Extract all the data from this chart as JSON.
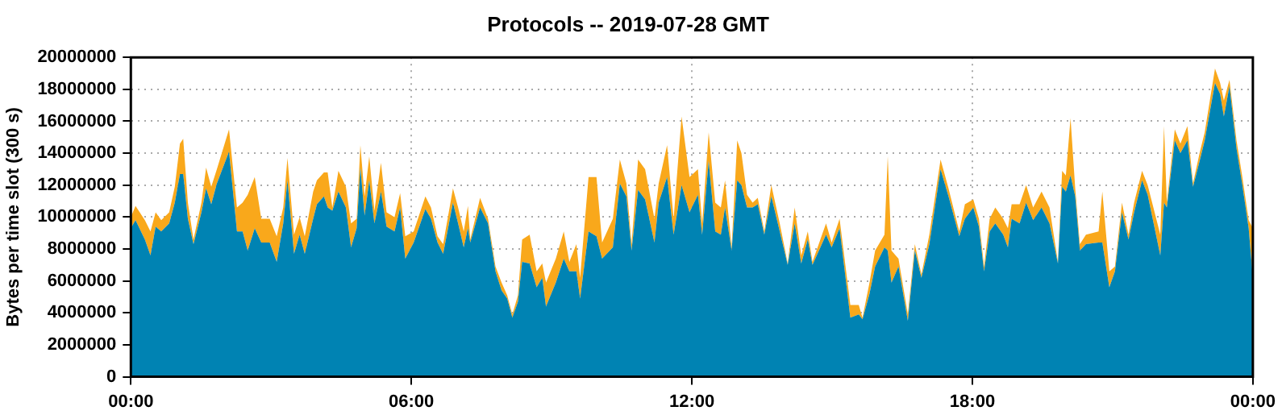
{
  "chart_data": {
    "type": "area",
    "title": "Protocols -- 2019-07-28 GMT",
    "ylabel": "Bytes per time slot (300 s)",
    "stacked": true,
    "grid": true,
    "xlim": [
      0,
      24
    ],
    "xticks": [
      {
        "value": 0,
        "label": "00:00"
      },
      {
        "value": 6,
        "label": "06:00"
      },
      {
        "value": 12,
        "label": "12:00"
      },
      {
        "value": 18,
        "label": "18:00"
      },
      {
        "value": 24,
        "label": "00:00"
      }
    ],
    "ylim": [
      0,
      20000000
    ],
    "yticks": [
      0,
      2000000,
      4000000,
      6000000,
      8000000,
      10000000,
      12000000,
      14000000,
      16000000,
      18000000,
      20000000
    ],
    "x": [
      0,
      0.1,
      0.3,
      0.42,
      0.53,
      0.65,
      0.82,
      0.94,
      1.05,
      1.12,
      1.22,
      1.34,
      1.51,
      1.61,
      1.72,
      1.84,
      2.1,
      2.27,
      2.39,
      2.5,
      2.65,
      2.79,
      2.97,
      3.12,
      3.26,
      3.35,
      3.49,
      3.61,
      3.72,
      3.9,
      3.98,
      4.13,
      4.21,
      4.31,
      4.44,
      4.6,
      4.71,
      4.83,
      4.91,
      5.0,
      5.1,
      5.21,
      5.35,
      5.47,
      5.64,
      5.76,
      5.87,
      6.05,
      6.3,
      6.42,
      6.56,
      6.68,
      6.89,
      7.0,
      7.12,
      7.21,
      7.26,
      7.47,
      7.64,
      7.8,
      7.93,
      8.05,
      8.16,
      8.28,
      8.37,
      8.53,
      8.68,
      8.8,
      8.88,
      9.09,
      9.26,
      9.38,
      9.53,
      9.61,
      9.79,
      9.96,
      10.08,
      10.31,
      10.46,
      10.6,
      10.71,
      10.85,
      11.0,
      11.2,
      11.29,
      11.47,
      11.61,
      11.78,
      11.95,
      12.13,
      12.22,
      12.36,
      12.5,
      12.62,
      12.71,
      12.85,
      12.97,
      13.06,
      13.18,
      13.3,
      13.41,
      13.55,
      13.7,
      13.88,
      14.05,
      14.2,
      14.34,
      14.48,
      14.58,
      14.87,
      14.99,
      15.16,
      15.39,
      15.57,
      15.65,
      15.8,
      15.92,
      16.12,
      16.19,
      16.27,
      16.42,
      16.62,
      16.77,
      16.91,
      17.08,
      17.32,
      17.49,
      17.72,
      17.84,
      18.02,
      18.14,
      18.25,
      18.37,
      18.49,
      18.66,
      18.76,
      18.84,
      19.01,
      19.15,
      19.3,
      19.48,
      19.65,
      19.83,
      19.92,
      20.0,
      20.1,
      20.2,
      20.3,
      20.43,
      20.7,
      20.78,
      20.93,
      21.05,
      21.2,
      21.34,
      21.46,
      21.63,
      21.75,
      22.02,
      22.1,
      22.16,
      22.33,
      22.45,
      22.6,
      22.72,
      22.86,
      22.97,
      23.19,
      23.3,
      23.38,
      23.5,
      23.65,
      23.77,
      23.91,
      24.0
    ],
    "series": [
      {
        "color": "#0083b3",
        "values": [
          9300000,
          9800000,
          8600000,
          7600000,
          9400000,
          9100000,
          9600000,
          10900000,
          12700000,
          12700000,
          9900000,
          8300000,
          10300000,
          11800000,
          10800000,
          12100000,
          14100000,
          9100000,
          9100000,
          7900000,
          9300000,
          8400000,
          8400000,
          7200000,
          9600000,
          12300000,
          7700000,
          8900000,
          7700000,
          9900000,
          10800000,
          11300000,
          10600000,
          10400000,
          11600000,
          10600000,
          8100000,
          9300000,
          13100000,
          10100000,
          12300000,
          9600000,
          11600000,
          9400000,
          9100000,
          10600000,
          7400000,
          8400000,
          10500000,
          9900000,
          8400000,
          7700000,
          10900000,
          9600000,
          8100000,
          9300000,
          8400000,
          10600000,
          9600000,
          6600000,
          5400000,
          4900000,
          3700000,
          4700000,
          7200000,
          7100000,
          5600000,
          6200000,
          4400000,
          5900000,
          7400000,
          6600000,
          6600000,
          4900000,
          9100000,
          8800000,
          7400000,
          8100000,
          12100000,
          11300000,
          7900000,
          11700000,
          11100000,
          8400000,
          10900000,
          12500000,
          8900000,
          12000000,
          10300000,
          11400000,
          8900000,
          13500000,
          9100000,
          8900000,
          10600000,
          7900000,
          12300000,
          12000000,
          10600000,
          10600000,
          10800000,
          8900000,
          11300000,
          9100000,
          7000000,
          9600000,
          7100000,
          8600000,
          7000000,
          8900000,
          8100000,
          9300000,
          3700000,
          3900000,
          3600000,
          5200000,
          6900000,
          8100000,
          7900000,
          5900000,
          6900000,
          3500000,
          7900000,
          6200000,
          8300000,
          13000000,
          11300000,
          8800000,
          9900000,
          10600000,
          9400000,
          6600000,
          9100000,
          9600000,
          8900000,
          8100000,
          9900000,
          9600000,
          10900000,
          9800000,
          10600000,
          9600000,
          7100000,
          11900000,
          11600000,
          12600000,
          11300000,
          7900000,
          8300000,
          8400000,
          8400000,
          5600000,
          6600000,
          10300000,
          8600000,
          10300000,
          12300000,
          11400000,
          7600000,
          10900000,
          10600000,
          14800000,
          14000000,
          14800000,
          11900000,
          13500000,
          14800000,
          18400000,
          17700000,
          16300000,
          18200000,
          14300000,
          12100000,
          9300000,
          6200000
        ]
      },
      {
        "color": "#f9a81b",
        "values": [
          700000,
          900000,
          1200000,
          1500000,
          900000,
          700000,
          700000,
          1000000,
          1900000,
          2200000,
          1000000,
          300000,
          600000,
          1300000,
          1100000,
          900000,
          1400000,
          1500000,
          1800000,
          3500000,
          3200000,
          1500000,
          1500000,
          1600000,
          1000000,
          1400000,
          1200000,
          1100000,
          1100000,
          1700000,
          1500000,
          1500000,
          2200000,
          200000,
          1300000,
          1300000,
          1500000,
          600000,
          1400000,
          1200000,
          1500000,
          800000,
          1800000,
          900000,
          900000,
          900000,
          1400000,
          700000,
          800000,
          700000,
          400000,
          600000,
          900000,
          1000000,
          1000000,
          1400000,
          200000,
          600000,
          300000,
          300000,
          500000,
          200000,
          200000,
          400000,
          1400000,
          1800000,
          1000000,
          900000,
          1500000,
          1500000,
          1700000,
          600000,
          1700000,
          1300000,
          3400000,
          3700000,
          1000000,
          1800000,
          1500000,
          800000,
          400000,
          1900000,
          1900000,
          1500000,
          1200000,
          2000000,
          1000000,
          4300000,
          2200000,
          1600000,
          700000,
          1800000,
          1800000,
          1700000,
          1700000,
          200000,
          2500000,
          2000000,
          800000,
          300000,
          400000,
          200000,
          700000,
          500000,
          100000,
          1000000,
          500000,
          500000,
          200000,
          700000,
          300000,
          600000,
          800000,
          600000,
          100000,
          700000,
          1000000,
          800000,
          5900000,
          2000000,
          500000,
          400000,
          400000,
          200000,
          600000,
          600000,
          500000,
          300000,
          900000,
          500000,
          500000,
          300000,
          800000,
          1000000,
          1000000,
          1200000,
          900000,
          1200000,
          1100000,
          800000,
          1000000,
          1000000,
          100000,
          1000000,
          1000000,
          3600000,
          500000,
          400000,
          600000,
          700000,
          3200000,
          1000000,
          300000,
          600000,
          300000,
          600000,
          600000,
          600000,
          1300000,
          4800000,
          300000,
          700000,
          600000,
          900000,
          200000,
          500000,
          500000,
          900000,
          700000,
          1000000,
          400000,
          500000,
          500000,
          500000,
          3100000
        ]
      }
    ]
  }
}
